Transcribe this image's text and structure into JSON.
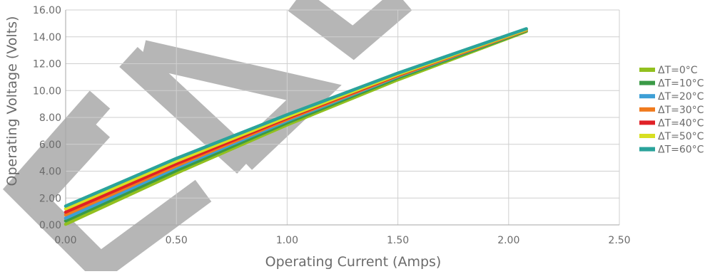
{
  "chart_data": {
    "type": "line",
    "title": "",
    "xlabel": "Operating Current (Amps)",
    "ylabel": "Operating Voltage (Volts)",
    "xlim": [
      0,
      2.5
    ],
    "ylim": [
      0,
      16
    ],
    "x_ticks": [
      0,
      0.5,
      1.0,
      1.5,
      2.0,
      2.5
    ],
    "x_tick_labels": [
      "0.00",
      "0.50",
      "1.00",
      "1.50",
      "2.00",
      "2.50"
    ],
    "y_ticks": [
      0,
      2,
      4,
      6,
      8,
      10,
      12,
      14,
      16
    ],
    "y_tick_labels": [
      "0.00",
      "2.00",
      "4.00",
      "6.00",
      "8.00",
      "10.00",
      "12.00",
      "14.00",
      "16.00"
    ],
    "grid": true,
    "legend_position": "right",
    "series": [
      {
        "name": "ΔT=0°C",
        "color": "#92c01f",
        "x": [
          0,
          0.5,
          1.0,
          1.5,
          2.08
        ],
        "y": [
          0.05,
          3.85,
          7.45,
          10.8,
          14.4
        ]
      },
      {
        "name": "ΔT=10°C",
        "color": "#3a9a46",
        "x": [
          0,
          0.5,
          1.0,
          1.5,
          2.08
        ],
        "y": [
          0.3,
          4.05,
          7.6,
          10.95,
          14.45
        ]
      },
      {
        "name": "ΔT=20°C",
        "color": "#3d9fd6",
        "x": [
          0,
          0.5,
          1.0,
          1.5,
          2.08
        ],
        "y": [
          0.5,
          4.25,
          7.75,
          11.05,
          14.5
        ]
      },
      {
        "name": "ΔT=30°C",
        "color": "#f07a1d",
        "x": [
          0,
          0.5,
          1.0,
          1.5,
          2.08
        ],
        "y": [
          0.75,
          4.4,
          7.85,
          11.1,
          14.5
        ]
      },
      {
        "name": "ΔT=40°C",
        "color": "#e02127",
        "x": [
          0,
          0.5,
          1.0,
          1.5,
          2.08
        ],
        "y": [
          0.95,
          4.55,
          7.95,
          11.15,
          14.55
        ]
      },
      {
        "name": "ΔT=50°C",
        "color": "#d7df22",
        "x": [
          0,
          0.5,
          1.0,
          1.5,
          2.08
        ],
        "y": [
          1.2,
          4.75,
          8.05,
          11.2,
          14.55
        ]
      },
      {
        "name": "ΔT=60°C",
        "color": "#2aa39b",
        "x": [
          0,
          0.5,
          1.0,
          1.5,
          2.08
        ],
        "y": [
          1.4,
          4.95,
          8.2,
          11.3,
          14.6
        ]
      }
    ]
  }
}
